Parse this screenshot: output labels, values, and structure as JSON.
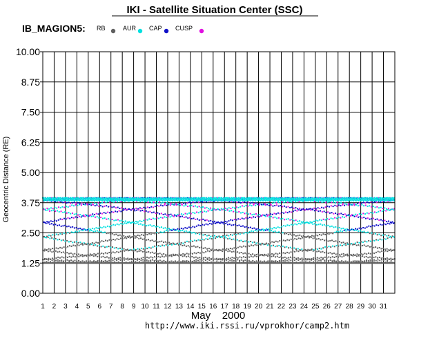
{
  "chart_data": {
    "type": "scatter",
    "title": "IKI - Satellite Situation Center (SSC)",
    "subtitle": "IB_MAGION5:",
    "xlabel": "May    2000",
    "ylabel": "Geocentric Distance (RE)",
    "url": "http://www.iki.rssi.ru/vprokhor/camp2.htm",
    "x_ticks": [
      "1",
      "2",
      "3",
      "4",
      "5",
      "6",
      "7",
      "8",
      "9",
      "10",
      "11",
      "12",
      "13",
      "14",
      "15",
      "16",
      "17",
      "18",
      "19",
      "20",
      "21",
      "22",
      "23",
      "24",
      "25",
      "26",
      "27",
      "28",
      "29",
      "30",
      "31"
    ],
    "y_ticks": [
      "0.00",
      "1.25",
      "2.50",
      "3.75",
      "5.00",
      "6.25",
      "7.50",
      "8.75",
      "10.00"
    ],
    "xlim": [
      1,
      32
    ],
    "ylim": [
      0,
      10
    ],
    "grid": true,
    "legend_position": "top-left",
    "orbit": {
      "perigee": 1.25,
      "apogee": 3.95,
      "orbits_per_day": 6
    },
    "series": [
      {
        "name": "RB",
        "color": "#606060",
        "range": [
          1.25,
          2.5
        ]
      },
      {
        "name": "AUR",
        "color": "#00e0e0",
        "range": [
          1.8,
          3.95
        ]
      },
      {
        "name": "CAP",
        "color": "#1010c8",
        "range": [
          2.6,
          3.95
        ]
      },
      {
        "name": "CUSP",
        "color": "#e010e0",
        "range": [
          2.9,
          3.85
        ]
      }
    ]
  }
}
